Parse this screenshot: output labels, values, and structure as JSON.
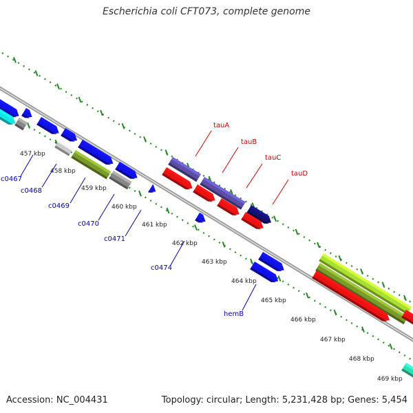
{
  "title": "Escherichia coli CFT073, complete genome",
  "footer": {
    "accession": "Accession: NC_004431",
    "summary": "Topology: circular; Length: 5,231,428 bp; Genes: 5,454"
  },
  "scale_labels": [
    "457 kbp",
    "458 kbp",
    "459 kbp",
    "460 kbp",
    "461 kbp",
    "462 kbp",
    "463 kbp",
    "464 kbp",
    "465 kbp",
    "466 kbp",
    "467 kbp",
    "468 kbp",
    "469 kbp"
  ],
  "gene_labels": {
    "below": [
      "c0467",
      "c0468",
      "c0469",
      "c0470",
      "c0471",
      "c0474",
      "hemB"
    ],
    "above": [
      "tauA",
      "tauB",
      "tauC",
      "tauD"
    ]
  },
  "colors": {
    "blue": "#1010e8",
    "red": "#ee1111",
    "cyan": "#10e8e8",
    "olive": "#7a9a2a",
    "gray": "#888888",
    "lightgray": "#cccccc",
    "purple": "#5a4ea6",
    "navy": "#121270",
    "lime": "#a8e030",
    "teal": "#30e0b0",
    "label_blue": "#0000aa",
    "label_red": "#cc0000",
    "tick_green": "#228822"
  }
}
